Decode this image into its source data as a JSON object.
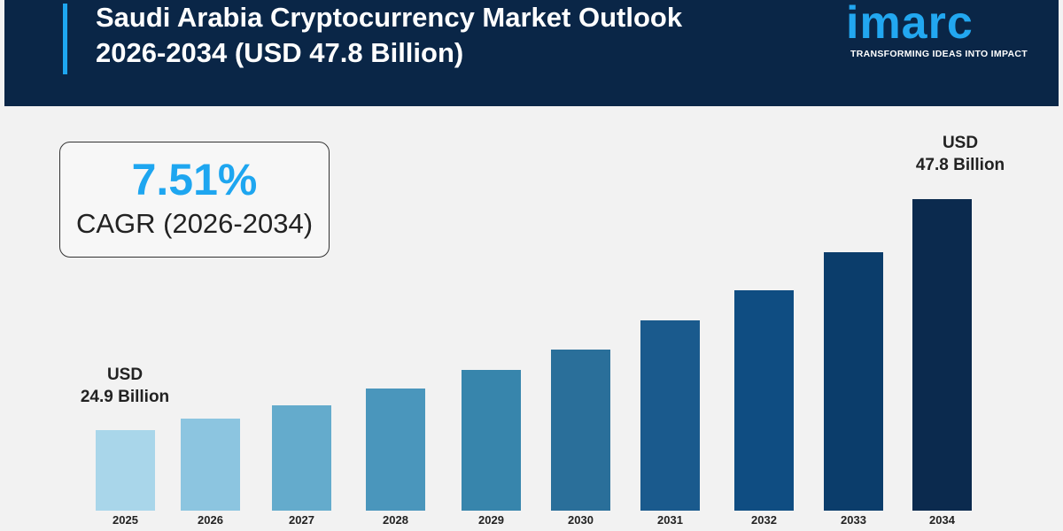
{
  "header": {
    "title_line1": "Saudi Arabia Cryptocurrency Market Outlook",
    "title_line2": "2026-2034 (USD 47.8 Billion)",
    "logo": "imarc",
    "tagline": "TRANSFORMING IDEAS INTO IMPACT",
    "colors": {
      "background": "#0a2647",
      "accent": "#1ea6f0"
    }
  },
  "cagr": {
    "value": "7.51%",
    "label": "CAGR (2026-2034)"
  },
  "chart_data": {
    "type": "bar",
    "categories": [
      "2025",
      "2026",
      "2027",
      "2028",
      "2029",
      "2030",
      "2031",
      "2032",
      "2033",
      "2034"
    ],
    "values": [
      24.9,
      26.0,
      27.4,
      29.0,
      30.9,
      32.9,
      35.8,
      38.8,
      42.5,
      47.8
    ],
    "unit": "USD Billion",
    "data_labels": {
      "first": {
        "line1": "USD",
        "line2": "24.9 Billion"
      },
      "last": {
        "line1": "USD",
        "line2": "47.8 Billion"
      }
    },
    "colors": [
      "#a9d6ea",
      "#8cc5e0",
      "#64abcc",
      "#4a96bc",
      "#3785ac",
      "#2a6f9a",
      "#1a5a8d",
      "#0f4d82",
      "#0b3d6b",
      "#0b2a4e"
    ],
    "grid": false,
    "title": "",
    "xlabel": "",
    "ylabel": ""
  }
}
